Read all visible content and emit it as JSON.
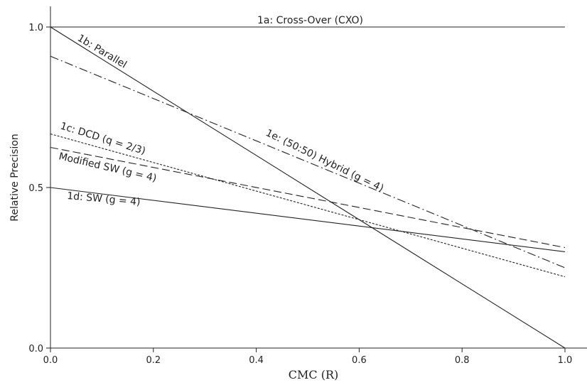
{
  "chart_data": {
    "type": "line",
    "xlabel": "CMC (R)",
    "ylabel": "Relative Precision",
    "xlim": [
      0,
      1
    ],
    "ylim": [
      0,
      1
    ],
    "x_ticks": [
      "0.0",
      "0.2",
      "0.4",
      "0.6",
      "0.8",
      "1.0"
    ],
    "y_ticks": [
      "0.0",
      "0.5",
      "1.0"
    ],
    "grid": false,
    "series": [
      {
        "name": "1a: Cross-Over (CXO)",
        "style": "solid",
        "x": [
          0,
          1
        ],
        "y": [
          1.0,
          1.0
        ]
      },
      {
        "name": "1b: Parallel",
        "style": "solid",
        "x": [
          0,
          1
        ],
        "y": [
          1.0,
          0.0
        ]
      },
      {
        "name": "1c: DCD (q = 2/3)",
        "style": "dotted",
        "x": [
          0,
          1
        ],
        "y": [
          0.667,
          0.222
        ]
      },
      {
        "name": "1d: SW (g = 4)",
        "style": "solid",
        "x": [
          0,
          1
        ],
        "y": [
          0.5,
          0.3
        ]
      },
      {
        "name": "1e: (50:50) Hybrid (g = 4)",
        "style": "dashdot",
        "x": [
          0,
          1
        ],
        "y": [
          0.909,
          0.25
        ]
      },
      {
        "name": "Modified SW (g = 4)",
        "style": "dashed",
        "x": [
          0,
          1
        ],
        "y": [
          0.625,
          0.313
        ]
      }
    ]
  }
}
